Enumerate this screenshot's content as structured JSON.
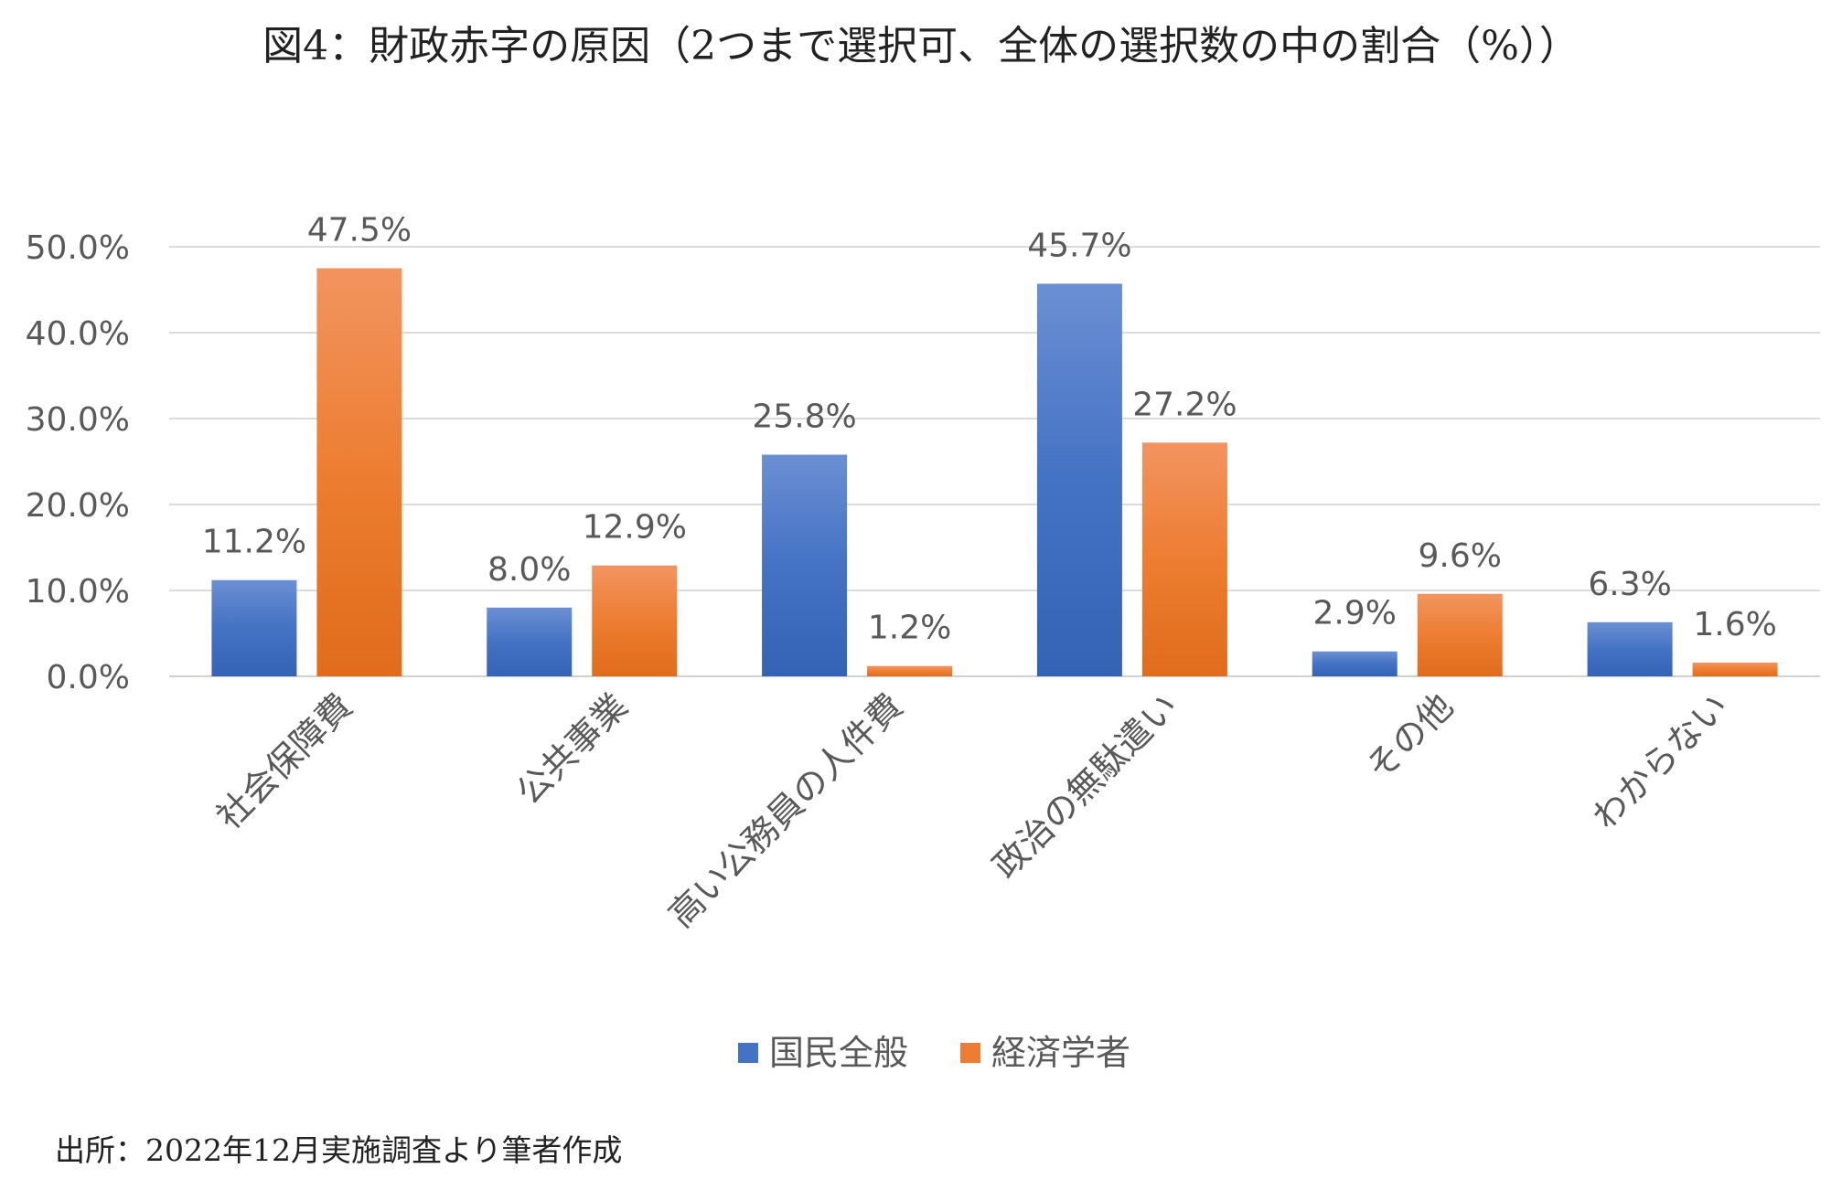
{
  "title": "図4：財政赤字の原因（2つまで選択可、全体の選択数の中の割合（%））",
  "source": "出所：2022年12月実施調査より筆者作成",
  "chart_data": {
    "type": "bar",
    "categories": [
      "社会保障費",
      "公共事業",
      "高い公務員の人件費",
      "政治の無駄遣い",
      "その他",
      "わからない"
    ],
    "series": [
      {
        "name": "国民全般",
        "values": [
          11.2,
          8.0,
          25.8,
          45.7,
          2.9,
          6.3
        ],
        "labels": [
          "11.2%",
          "8.0%",
          "25.8%",
          "45.7%",
          "2.9%",
          "6.3%"
        ],
        "color": "#4472C4"
      },
      {
        "name": "経済学者",
        "values": [
          47.5,
          12.9,
          1.2,
          27.2,
          9.6,
          1.6
        ],
        "labels": [
          "47.5%",
          "12.9%",
          "1.2%",
          "27.2%",
          "9.6%",
          "1.6%"
        ],
        "color": "#ED7D31"
      }
    ],
    "ylim": [
      0,
      50
    ],
    "yticks": [
      0,
      10,
      20,
      30,
      40,
      50
    ],
    "ytick_labels": [
      "0.0%",
      "10.0%",
      "20.0%",
      "30.0%",
      "40.0%",
      "50.0%"
    ],
    "grid": true,
    "legend": "bottom"
  }
}
